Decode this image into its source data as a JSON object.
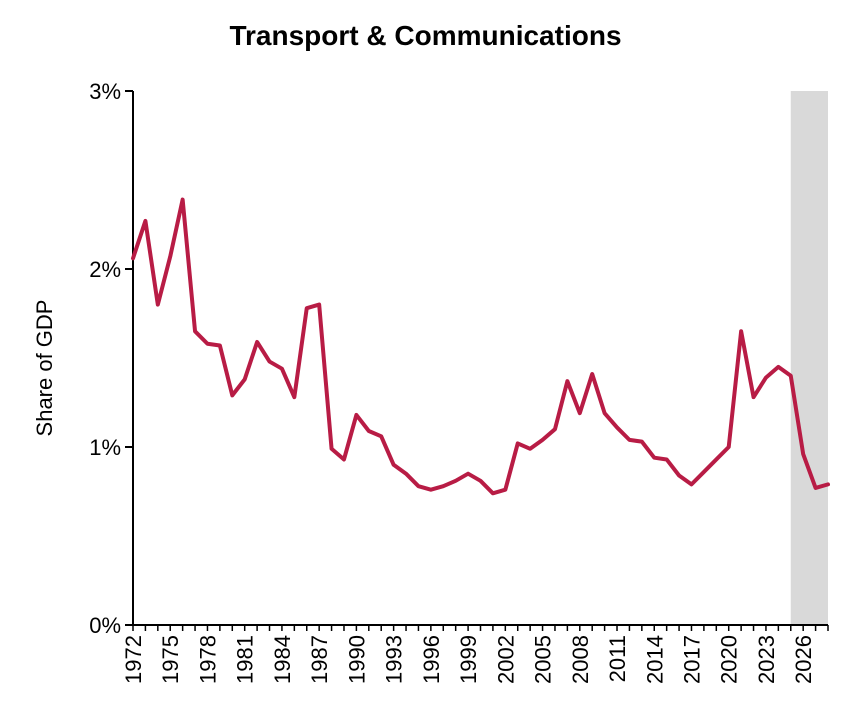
{
  "chart_data": {
    "type": "line",
    "title": "Transport & Communications",
    "ylabel": "Share of GDP",
    "xlabel": "",
    "ylim": [
      0,
      3
    ],
    "xlim": [
      1972,
      2028
    ],
    "y_ticks": [
      "0%",
      "1%",
      "2%",
      "3%"
    ],
    "y_tick_values": [
      0,
      1,
      2,
      3
    ],
    "x_ticks": [
      "1972",
      "1975",
      "1978",
      "1981",
      "1984",
      "1987",
      "1990",
      "1993",
      "1996",
      "1999",
      "2002",
      "2005",
      "2008",
      "2011",
      "2014",
      "2017",
      "2020",
      "2023",
      "2026"
    ],
    "x_tick_values": [
      1972,
      1975,
      1978,
      1981,
      1984,
      1987,
      1990,
      1993,
      1996,
      1999,
      2002,
      2005,
      2008,
      2011,
      2014,
      2017,
      2020,
      2023,
      2026
    ],
    "projection_shading": {
      "from": 2025,
      "to": 2028,
      "color": "#d9d9d9"
    },
    "line_color": "#b81c45",
    "grid": false,
    "series": [
      {
        "x": [
          1972,
          1973,
          1974,
          1975,
          1976,
          1977,
          1978,
          1979,
          1980,
          1981,
          1982,
          1983,
          1984,
          1985,
          1986,
          1987,
          1988,
          1989,
          1990,
          1991,
          1992,
          1993,
          1994,
          1995,
          1996,
          1997,
          1998,
          1999,
          2000,
          2001,
          2002,
          2003,
          2004,
          2005,
          2006,
          2007,
          2008,
          2009,
          2010,
          2011,
          2012,
          2013,
          2014,
          2015,
          2016,
          2017,
          2018,
          2019,
          2020,
          2021,
          2022,
          2023,
          2024,
          2025,
          2026,
          2027,
          2028
        ],
        "values": [
          2.06,
          2.27,
          1.8,
          2.07,
          2.39,
          1.65,
          1.58,
          1.57,
          1.29,
          1.38,
          1.59,
          1.48,
          1.44,
          1.28,
          1.78,
          1.8,
          0.99,
          0.93,
          1.18,
          1.09,
          1.06,
          0.9,
          0.85,
          0.78,
          0.76,
          0.78,
          0.81,
          0.85,
          0.81,
          0.74,
          0.76,
          1.02,
          0.99,
          1.04,
          1.1,
          1.37,
          1.19,
          1.41,
          1.19,
          1.11,
          1.04,
          1.03,
          0.94,
          0.93,
          0.84,
          0.79,
          0.86,
          0.93,
          1.0,
          1.65,
          1.28,
          1.39,
          1.45,
          1.4,
          0.96,
          0.77,
          0.79
        ]
      }
    ]
  }
}
